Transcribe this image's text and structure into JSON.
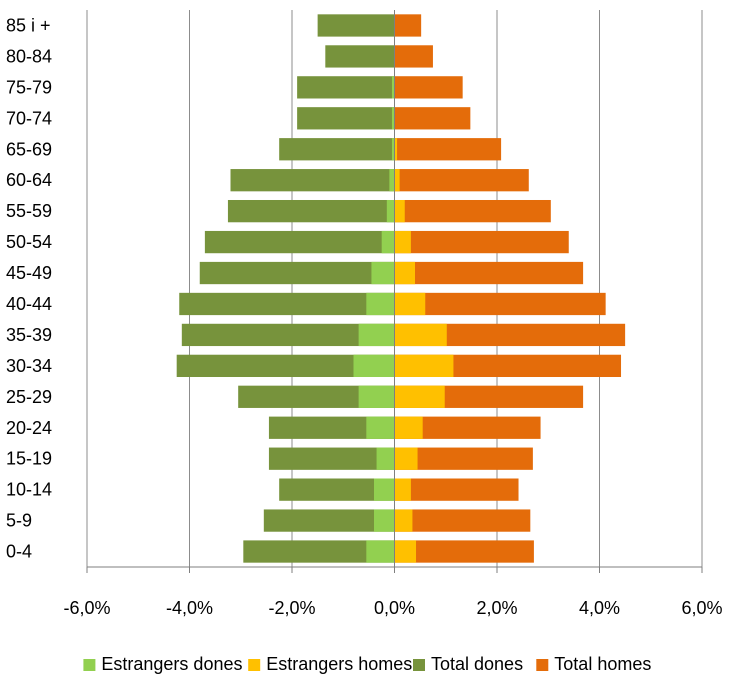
{
  "chart_data": {
    "type": "bar",
    "orientation": "horizontal",
    "layout": "population-pyramid-overlapping",
    "categories": [
      "0-4",
      "5-9",
      "10-14",
      "15-19",
      "20-24",
      "25-29",
      "30-34",
      "35-39",
      "40-44",
      "45-49",
      "50-54",
      "55-59",
      "60-64",
      "65-69",
      "70-74",
      "75-79",
      "80-84",
      "85 i +"
    ],
    "x_tick_labels": [
      "-6,0%",
      "-4,0%",
      "-2,0%",
      "0,0%",
      "2,0%",
      "4,0%",
      "6,0%"
    ],
    "x_ticks": [
      -6,
      -4,
      -2,
      0,
      2,
      4,
      6
    ],
    "xlim": [
      -6,
      6
    ],
    "grid": "vertical",
    "legend_position": "bottom",
    "series": [
      {
        "name": "Estrangers dones",
        "color": "#92D050",
        "values": [
          -0.55,
          -0.4,
          -0.4,
          -0.35,
          -0.55,
          -0.7,
          -0.8,
          -0.7,
          -0.55,
          -0.45,
          -0.25,
          -0.15,
          -0.1,
          -0.05,
          -0.05,
          -0.05,
          0,
          0
        ]
      },
      {
        "name": "Estrangers homes",
        "color": "#FFC000",
        "values": [
          0.42,
          0.35,
          0.32,
          0.45,
          0.55,
          0.98,
          1.15,
          1.02,
          0.6,
          0.4,
          0.32,
          0.2,
          0.1,
          0.05,
          0,
          0,
          0,
          0
        ]
      },
      {
        "name": "Total dones",
        "color": "#77933C",
        "values": [
          -2.95,
          -2.55,
          -2.25,
          -2.45,
          -2.45,
          -3.05,
          -4.25,
          -4.15,
          -4.2,
          -3.8,
          -3.7,
          -3.25,
          -3.2,
          -2.25,
          -1.9,
          -1.9,
          -1.35,
          -1.5
        ]
      },
      {
        "name": "Total homes",
        "color": "#E46C0A",
        "values": [
          2.72,
          2.65,
          2.42,
          2.7,
          2.85,
          3.68,
          4.42,
          4.5,
          4.12,
          3.68,
          3.4,
          3.05,
          2.62,
          2.08,
          1.48,
          1.33,
          0.75,
          0.52
        ]
      }
    ]
  }
}
